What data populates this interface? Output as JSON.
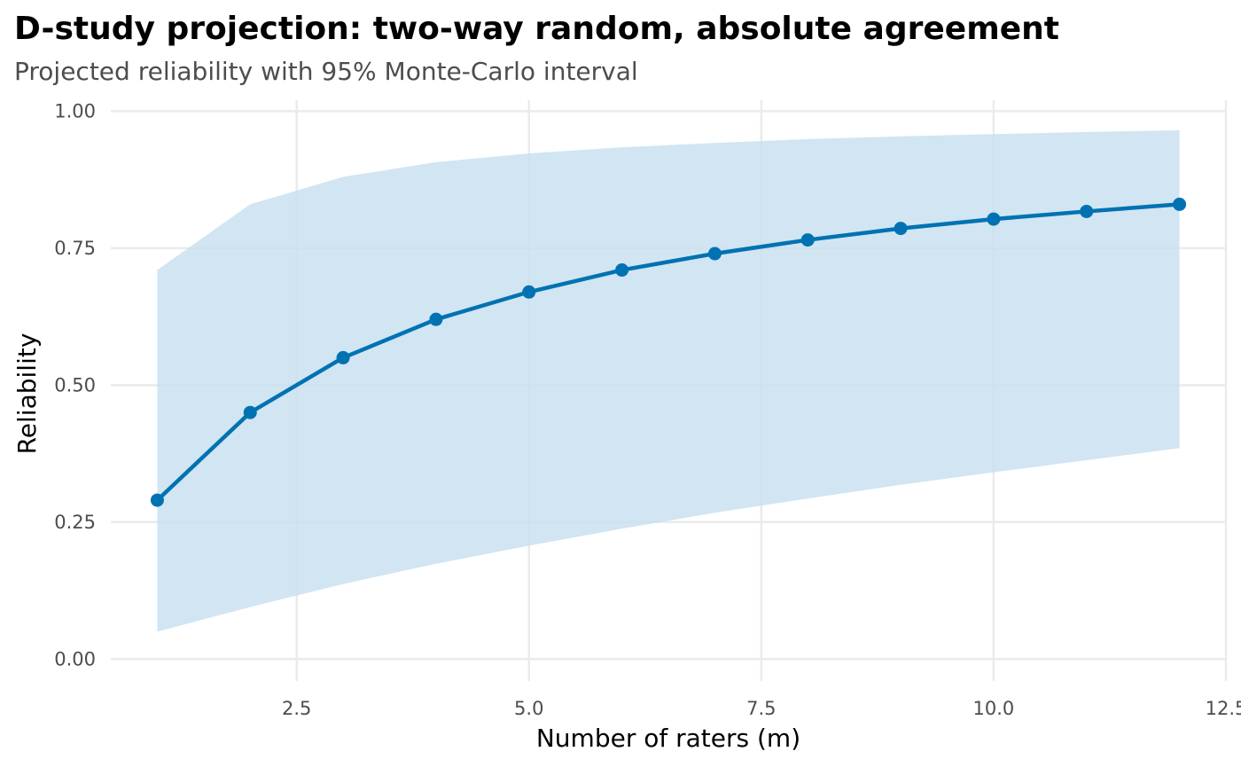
{
  "chart_data": {
    "type": "line",
    "title": "D-study projection: two-way random, absolute agreement",
    "subtitle": "Projected reliability with 95% Monte-Carlo interval",
    "xlabel": "Number of raters (m)",
    "ylabel": "Reliability",
    "xlim": [
      0.5,
      12.5
    ],
    "ylim": [
      -0.04,
      1.02
    ],
    "x_ticks": [
      {
        "value": 2.5,
        "label": "2.5"
      },
      {
        "value": 5.0,
        "label": "5.0"
      },
      {
        "value": 7.5,
        "label": "7.5"
      },
      {
        "value": 10.0,
        "label": "10.0"
      },
      {
        "value": 12.5,
        "label": "12.5"
      }
    ],
    "y_ticks": [
      {
        "value": 0.0,
        "label": "0.00"
      },
      {
        "value": 0.25,
        "label": "0.25"
      },
      {
        "value": 0.5,
        "label": "0.50"
      },
      {
        "value": 0.75,
        "label": "0.75"
      },
      {
        "value": 1.0,
        "label": "1.00"
      }
    ],
    "grid": true,
    "series": [
      {
        "x": [
          1,
          2,
          3,
          4,
          5,
          6,
          7,
          8,
          9,
          10,
          11,
          12
        ],
        "values": [
          0.29,
          0.45,
          0.55,
          0.62,
          0.67,
          0.71,
          0.74,
          0.765,
          0.786,
          0.803,
          0.817,
          0.83
        ],
        "lower": [
          0.05,
          0.095,
          0.137,
          0.174,
          0.207,
          0.238,
          0.267,
          0.293,
          0.318,
          0.341,
          0.363,
          0.385
        ],
        "upper": [
          0.71,
          0.83,
          0.88,
          0.907,
          0.923,
          0.934,
          0.942,
          0.949,
          0.954,
          0.958,
          0.962,
          0.965
        ]
      }
    ],
    "colors": {
      "line": "#0072b2",
      "band": "#c6dff0",
      "grid": "#ebebeb"
    }
  }
}
